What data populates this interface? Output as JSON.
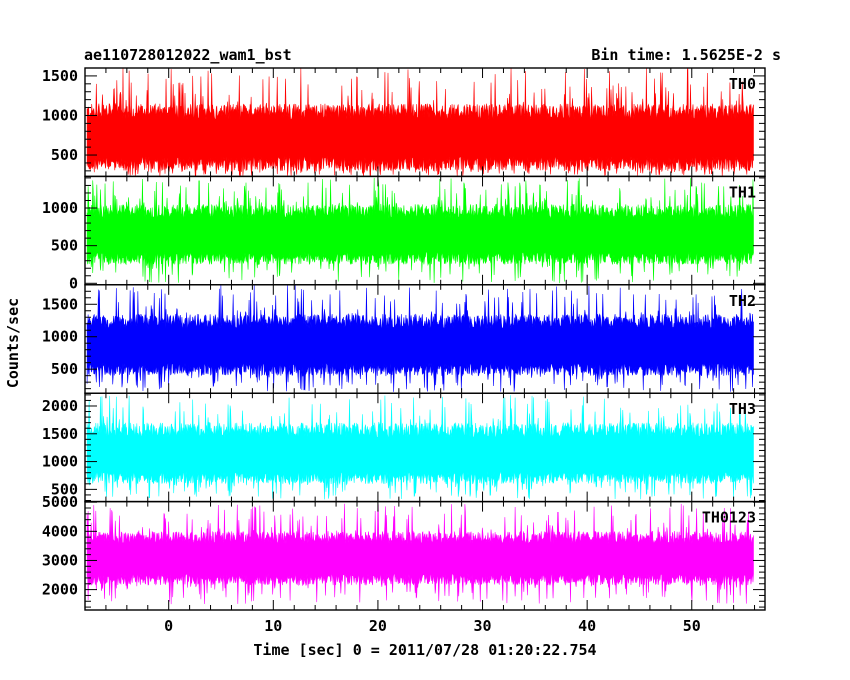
{
  "header": {
    "title": "ae110728012022_wam1_bst",
    "bin_time": "Bin time: 1.5625E-2 s"
  },
  "chart_data": {
    "type": "line",
    "title": "ae110728012022_wam1_bst",
    "xlabel": "Time [sec] 0 = 2011/07/28 01:20:22.754",
    "ylabel": "Counts/sec",
    "xlim": [
      -8,
      57
    ],
    "x_ticks": [
      0,
      10,
      20,
      30,
      40,
      50
    ],
    "x_tick_labels": [
      "0",
      "10",
      "20",
      "30",
      "40",
      "50"
    ],
    "x_data_range": [
      -7.8,
      55.9
    ],
    "panels": [
      {
        "name": "TH0",
        "color": "#ff0000",
        "ylim": [
          230,
          1600
        ],
        "yticks": [
          500,
          1000,
          1500
        ],
        "ytick_labels": [
          "500",
          "1000",
          "1500"
        ],
        "x": [
          -7.8,
          0,
          10,
          20,
          30,
          40,
          50,
          55.9
        ],
        "mean": [
          700,
          700,
          710,
          690,
          700,
          705,
          700,
          700
        ],
        "band_low": [
          300,
          300,
          300,
          300,
          300,
          300,
          300,
          300
        ],
        "band_high": [
          1150,
          1150,
          1150,
          1150,
          1150,
          1150,
          1150,
          1150
        ],
        "peak_max": 1600,
        "dip_min": 230
      },
      {
        "name": "TH1",
        "color": "#00ff00",
        "ylim": [
          -20,
          1420
        ],
        "yticks": [
          0,
          500,
          1000
        ],
        "ytick_labels": [
          "0",
          "500",
          "1000"
        ],
        "x": [
          -7.8,
          0,
          10,
          20,
          30,
          40,
          50,
          55.9
        ],
        "mean": [
          620,
          620,
          615,
          625,
          620,
          620,
          615,
          620
        ],
        "band_low": [
          250,
          250,
          250,
          250,
          250,
          250,
          250,
          250
        ],
        "band_high": [
          1050,
          1050,
          1050,
          1050,
          1050,
          1050,
          1050,
          1050
        ],
        "peak_max": 1400,
        "dip_min": 0
      },
      {
        "name": "TH2",
        "color": "#0000ff",
        "ylim": [
          130,
          1800
        ],
        "yticks": [
          500,
          1000,
          1500
        ],
        "ytick_labels": [
          "500",
          "1000",
          "1500"
        ],
        "x": [
          -7.8,
          0,
          10,
          20,
          30,
          40,
          50,
          55.9
        ],
        "mean": [
          840,
          840,
          845,
          835,
          840,
          840,
          845,
          840
        ],
        "band_low": [
          400,
          400,
          400,
          400,
          400,
          400,
          400,
          400
        ],
        "band_high": [
          1350,
          1350,
          1350,
          1350,
          1350,
          1350,
          1350,
          1350
        ],
        "peak_max": 1800,
        "dip_min": 150
      },
      {
        "name": "TH3",
        "color": "#00ffff",
        "ylim": [
          280,
          2230
        ],
        "yticks": [
          500,
          1000,
          1500,
          2000
        ],
        "ytick_labels": [
          "500",
          "1000",
          "1500",
          "2000"
        ],
        "x": [
          -7.8,
          0,
          10,
          20,
          30,
          40,
          50,
          55.9
        ],
        "mean": [
          1100,
          1100,
          1105,
          1095,
          1100,
          1100,
          1095,
          1100
        ],
        "band_low": [
          600,
          600,
          600,
          600,
          600,
          600,
          600,
          600
        ],
        "band_high": [
          1700,
          1700,
          1700,
          1700,
          1700,
          1700,
          1700,
          1700
        ],
        "peak_max": 2200,
        "dip_min": 320
      },
      {
        "name": "TH0123",
        "color": "#ff00ff",
        "ylim": [
          1300,
          5020
        ],
        "yticks": [
          2000,
          3000,
          4000,
          5000
        ],
        "ytick_labels": [
          "2000",
          "3000",
          "4000",
          "5000"
        ],
        "x": [
          -7.8,
          0,
          10,
          20,
          30,
          40,
          50,
          55.9
        ],
        "mean": [
          3050,
          3050,
          3060,
          3040,
          3050,
          3055,
          3050,
          3050
        ],
        "band_low": [
          2150,
          2150,
          2150,
          2150,
          2150,
          2150,
          2150,
          2150
        ],
        "band_high": [
          4000,
          4000,
          4000,
          4000,
          4000,
          4000,
          4000,
          4000
        ],
        "peak_max": 4950,
        "dip_min": 1500
      }
    ]
  }
}
